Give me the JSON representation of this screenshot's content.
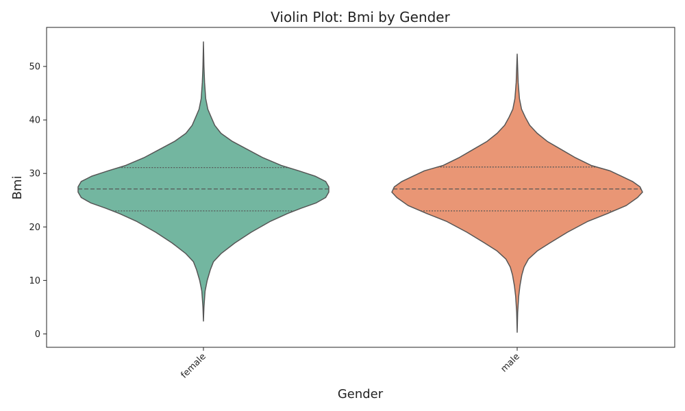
{
  "chart_data": {
    "type": "violin",
    "title": "Violin Plot: Bmi by Gender",
    "xlabel": "Gender",
    "ylabel": "Bmi",
    "ylim": [
      -2.5,
      57.3
    ],
    "yticks": [
      0,
      10,
      20,
      30,
      40,
      50
    ],
    "categories": [
      "female",
      "male"
    ],
    "colors": {
      "female": "#73b6a0",
      "male": "#e99675",
      "outline": "#555555"
    },
    "series": [
      {
        "category": "female",
        "min": 2.4,
        "max": 54.6,
        "q1": 23.0,
        "median": 27.1,
        "q3": 31.1,
        "density": [
          [
            2.4,
            0.0
          ],
          [
            5,
            0.004
          ],
          [
            8,
            0.013
          ],
          [
            10,
            0.03
          ],
          [
            12,
            0.055
          ],
          [
            13.5,
            0.08
          ],
          [
            15,
            0.14
          ],
          [
            17,
            0.25
          ],
          [
            19,
            0.38
          ],
          [
            21,
            0.53
          ],
          [
            22.5,
            0.67
          ],
          [
            23.5,
            0.78
          ],
          [
            24.5,
            0.9
          ],
          [
            25.5,
            0.975
          ],
          [
            26.5,
            1.0
          ],
          [
            27.5,
            1.0
          ],
          [
            28.5,
            0.975
          ],
          [
            29.5,
            0.89
          ],
          [
            30.5,
            0.76
          ],
          [
            31.5,
            0.62
          ],
          [
            33,
            0.47
          ],
          [
            34.5,
            0.35
          ],
          [
            36,
            0.23
          ],
          [
            37.5,
            0.14
          ],
          [
            39,
            0.09
          ],
          [
            40.5,
            0.062
          ],
          [
            42,
            0.035
          ],
          [
            44,
            0.018
          ],
          [
            47,
            0.009
          ],
          [
            50,
            0.004
          ],
          [
            54.6,
            0.0
          ]
        ]
      },
      {
        "category": "male",
        "min": 0.3,
        "max": 52.3,
        "q1": 23.0,
        "median": 27.1,
        "q3": 31.2,
        "density": [
          [
            0.3,
            0.0
          ],
          [
            4,
            0.004
          ],
          [
            7,
            0.012
          ],
          [
            9,
            0.022
          ],
          [
            11,
            0.037
          ],
          [
            12.5,
            0.055
          ],
          [
            14,
            0.09
          ],
          [
            15.5,
            0.16
          ],
          [
            17,
            0.26
          ],
          [
            19,
            0.4
          ],
          [
            21,
            0.56
          ],
          [
            22.5,
            0.72
          ],
          [
            24,
            0.87
          ],
          [
            25.5,
            0.96
          ],
          [
            26.5,
            1.0
          ],
          [
            27.5,
            0.98
          ],
          [
            28.5,
            0.92
          ],
          [
            29.5,
            0.83
          ],
          [
            30.5,
            0.74
          ],
          [
            31.5,
            0.59
          ],
          [
            33,
            0.46
          ],
          [
            34.5,
            0.35
          ],
          [
            36,
            0.24
          ],
          [
            37.5,
            0.16
          ],
          [
            39,
            0.1
          ],
          [
            40.5,
            0.065
          ],
          [
            42,
            0.035
          ],
          [
            44,
            0.018
          ],
          [
            47,
            0.008
          ],
          [
            52.3,
            0.0
          ]
        ]
      }
    ]
  }
}
